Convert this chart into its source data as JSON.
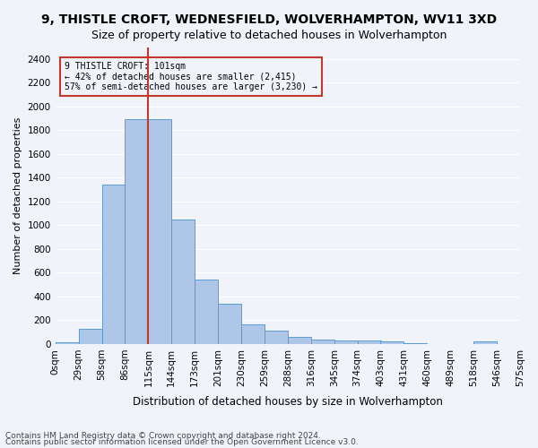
{
  "title1": "9, THISTLE CROFT, WEDNESFIELD, WOLVERHAMPTON, WV11 3XD",
  "title2": "Size of property relative to detached houses in Wolverhampton",
  "xlabel": "Distribution of detached houses by size in Wolverhampton",
  "ylabel": "Number of detached properties",
  "footer1": "Contains HM Land Registry data © Crown copyright and database right 2024.",
  "footer2": "Contains public sector information licensed under the Open Government Licence v3.0.",
  "annotation_title": "9 THISTLE CROFT: 101sqm",
  "annotation_line1": "← 42% of detached houses are smaller (2,415)",
  "annotation_line2": "57% of semi-detached houses are larger (3,230) →",
  "bar_values": [
    15,
    125,
    1340,
    1890,
    1890,
    1045,
    540,
    335,
    165,
    110,
    62,
    40,
    30,
    28,
    20,
    8,
    0,
    0,
    22,
    0
  ],
  "bin_labels": [
    "0sqm",
    "29sqm",
    "58sqm",
    "86sqm",
    "115sqm",
    "144sqm",
    "173sqm",
    "201sqm",
    "230sqm",
    "259sqm",
    "288sqm",
    "316sqm",
    "345sqm",
    "374sqm",
    "403sqm",
    "431sqm",
    "460sqm",
    "489sqm",
    "518sqm",
    "546sqm",
    "575sqm"
  ],
  "bar_color": "#aec6e8",
  "bar_edge_color": "#5b9bd5",
  "vline_x": 3.5,
  "vline_color": "#c0392b",
  "annotation_box_color": "#c0392b",
  "ylim": [
    0,
    2500
  ],
  "yticks": [
    0,
    200,
    400,
    600,
    800,
    1000,
    1200,
    1400,
    1600,
    1800,
    2000,
    2200,
    2400
  ],
  "background_color": "#f0f4fa",
  "grid_color": "#ffffff",
  "title1_fontsize": 10,
  "title2_fontsize": 9,
  "axis_label_fontsize": 8,
  "tick_fontsize": 7.5,
  "footer_fontsize": 6.5
}
